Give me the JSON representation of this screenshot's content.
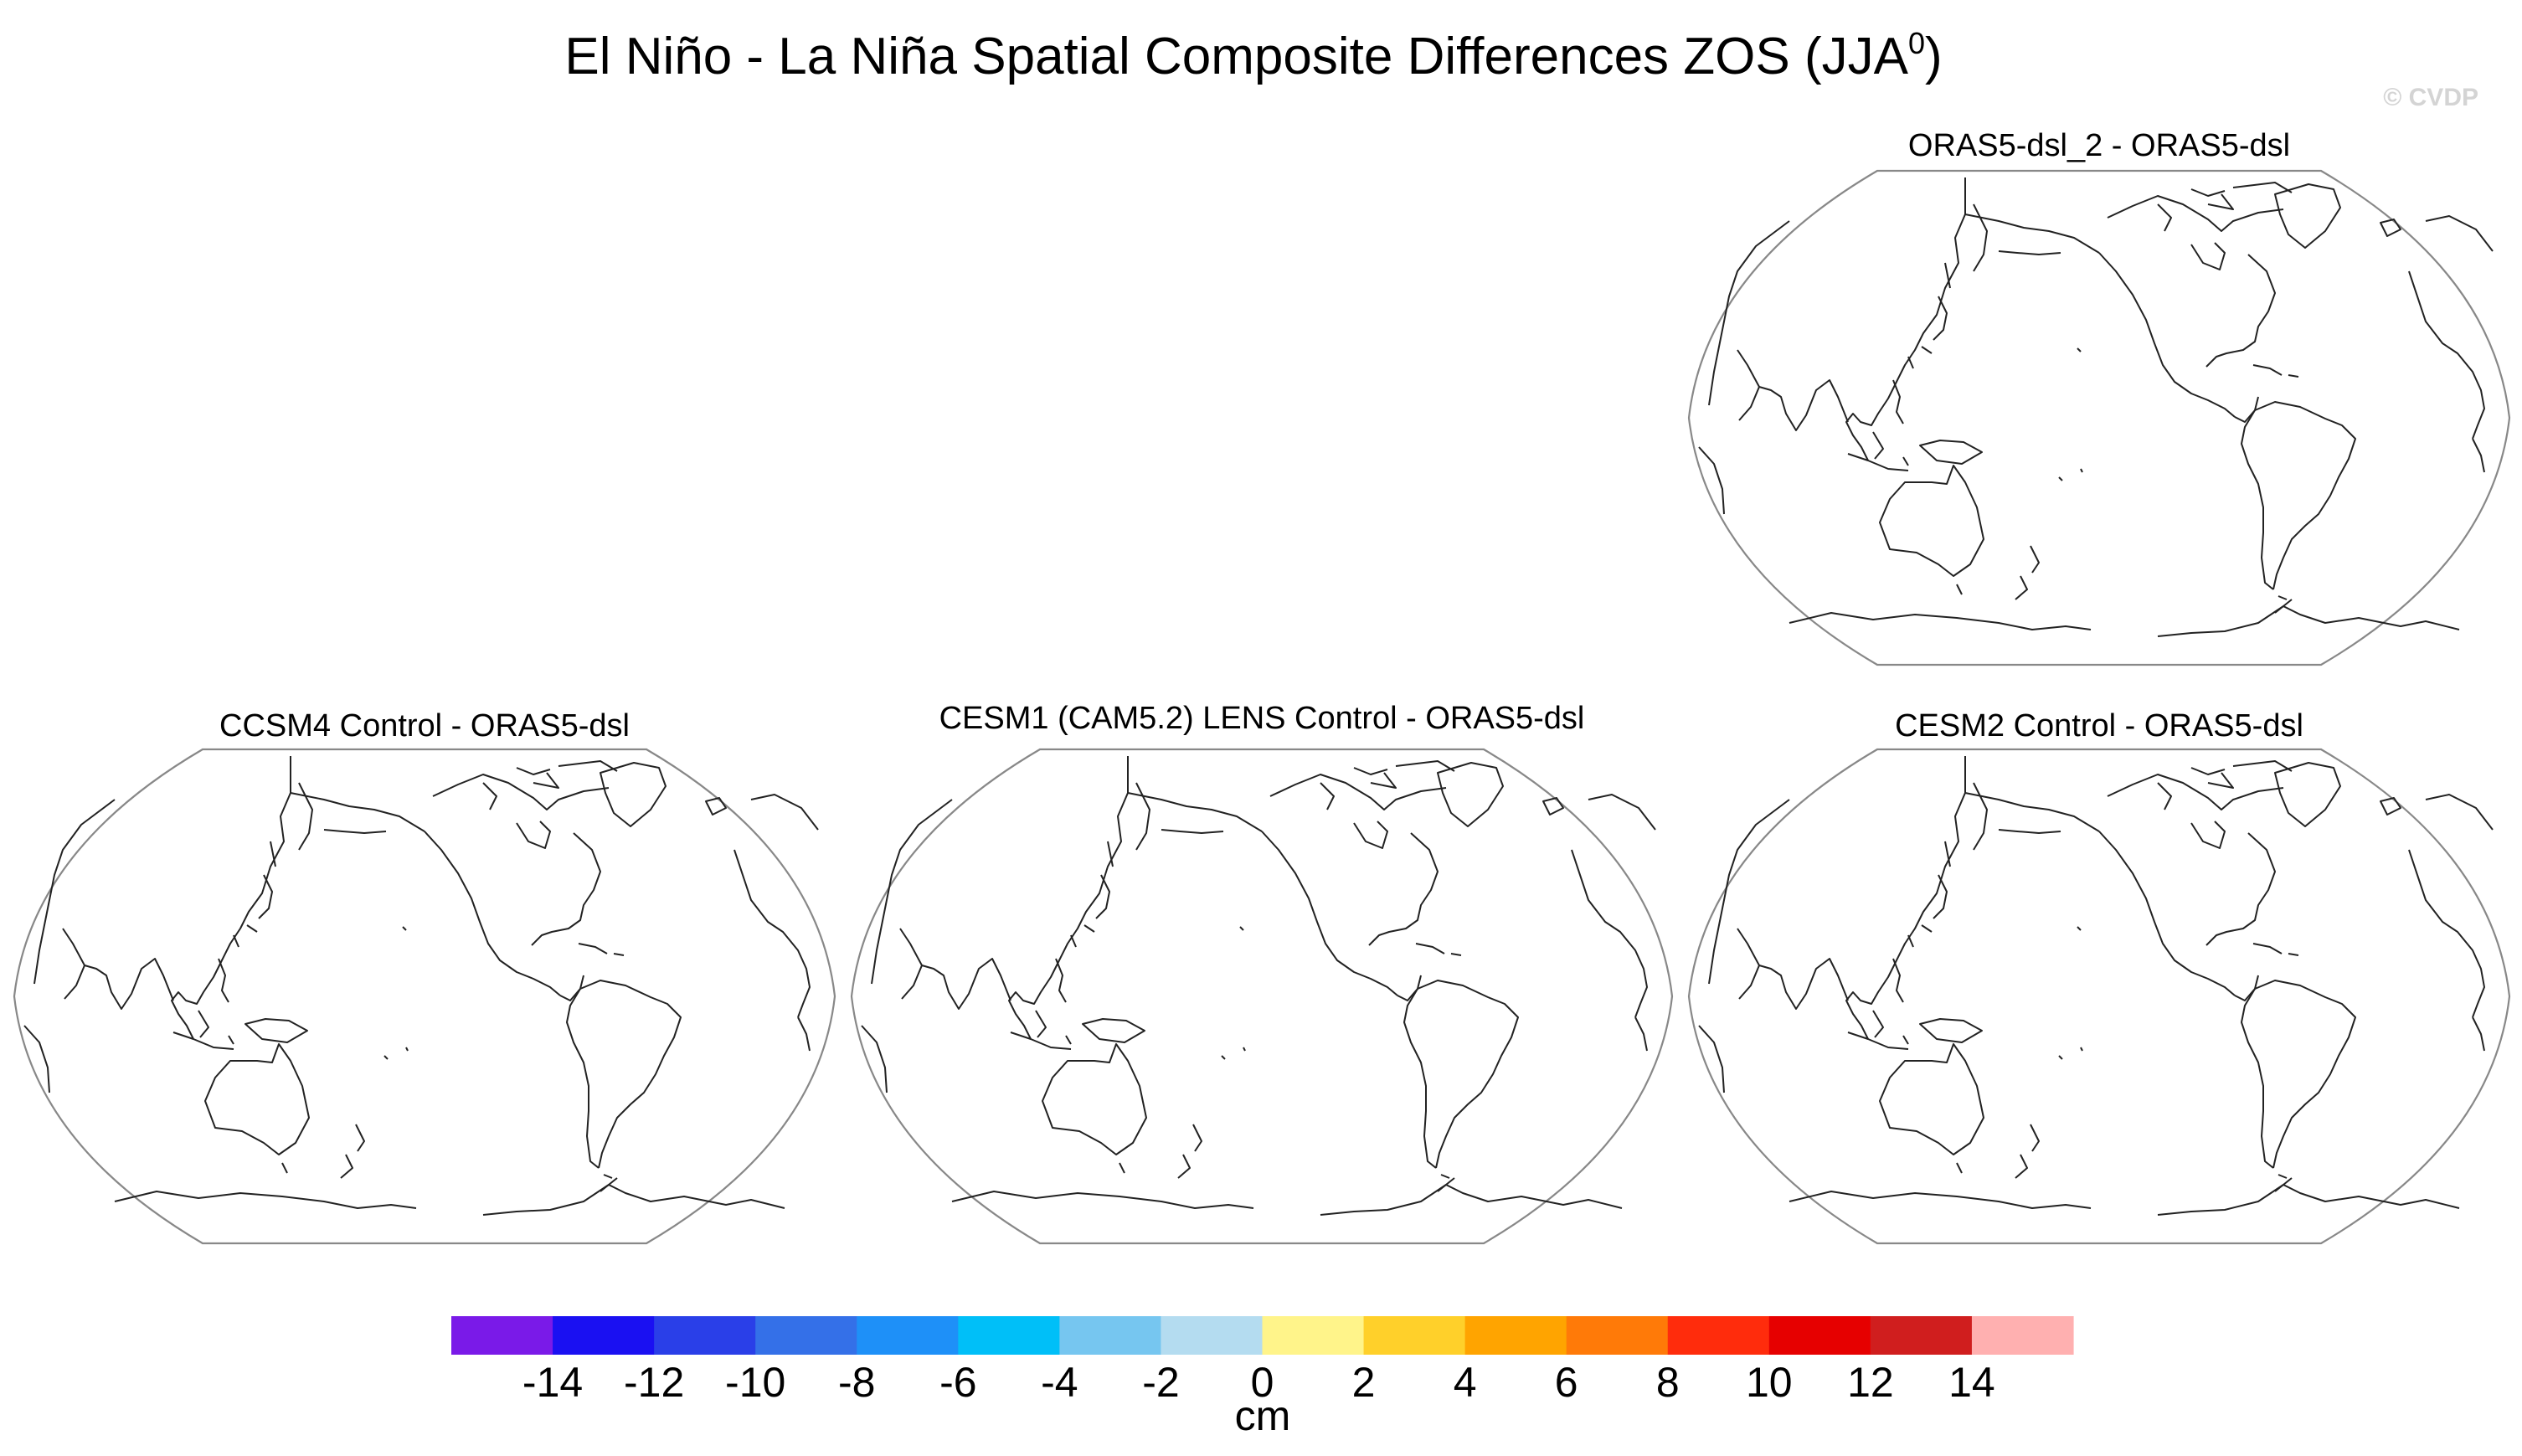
{
  "figure": {
    "title": "El Niño - La Niña Spatial Composite Differences ZOS (JJA",
    "title_superscript": "0",
    "title_close": ")",
    "watermark": "© CVDP"
  },
  "panels": [
    {
      "id": "p-top-right",
      "title": "ORAS5-dsl_2 - ORAS5-dsl"
    },
    {
      "id": "p-bottom-left",
      "title": "CCSM4 Control - ORAS5-dsl"
    },
    {
      "id": "p-bottom-center",
      "title": "CESM1 (CAM5.2) LENS Control - ORAS5-dsl"
    },
    {
      "id": "p-bottom-right",
      "title": "CESM2 Control - ORAS5-dsl"
    }
  ],
  "colorbar": {
    "unit": "cm",
    "ticks": [
      "-14",
      "-12",
      "-10",
      "-8",
      "-6",
      "-4",
      "-2",
      "0",
      "2",
      "4",
      "6",
      "8",
      "10",
      "12",
      "14"
    ],
    "colors": [
      "#7a1ae8",
      "#1a10f2",
      "#2a3fe8",
      "#3470e8",
      "#1e90f8",
      "#00bff8",
      "#76c6f0",
      "#b4dcf0",
      "#fff48a",
      "#ffd02a",
      "#ffa400",
      "#ff7a08",
      "#ff2c0c",
      "#e60000",
      "#d01e1e",
      "#ffb0b0"
    ]
  },
  "map": {
    "projection": "Robinson-like, Pacific-centred",
    "land_fill": "none",
    "outline_color": "#888888",
    "coast_color": "#222222"
  }
}
